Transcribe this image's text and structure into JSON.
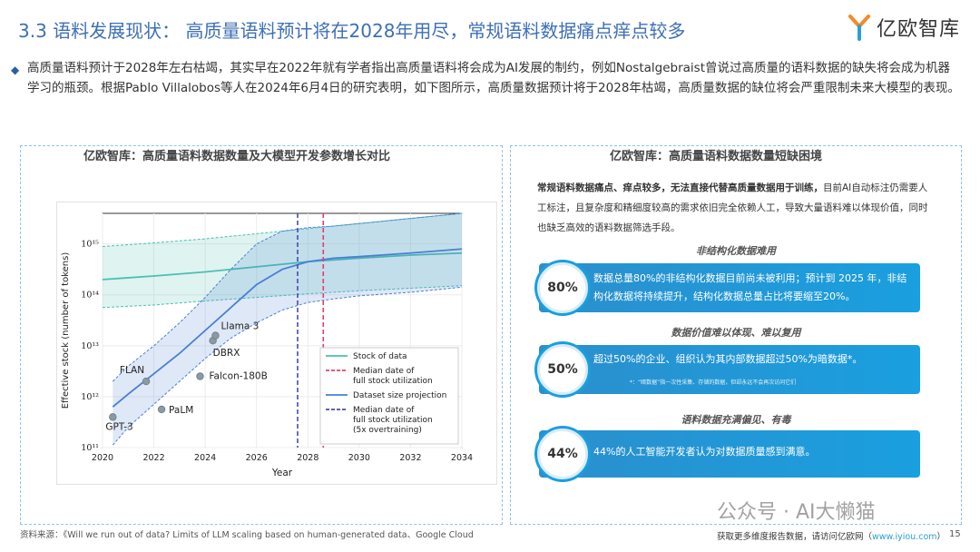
{
  "header": {
    "title": "3.3 语料发展现状： 高质量语料预计将在2028年用尽，常规语料数据痛点痒点较多",
    "logo_text": "亿欧智库"
  },
  "intro": {
    "text": "高质量语料预计于2028年左右枯竭，其实早在2022年就有学者指出高质量语料将会成为AI发展的制约，例如Nostalgebraist曾说过高质量的语料数据的缺失将会成为机器学习的瓶颈。根据Pablo Villalobos等人在2024年6月4日的研究表明，如下图所示，高质量数据预计将于2028年枯竭，高质量数据的缺位将会严重限制未来大模型的表现。"
  },
  "left_panel": {
    "title": "亿欧智库：高质量语料数据数量及大模型开发参数增长对比"
  },
  "right_panel": {
    "title": "亿欧智库：高质量语料数据数量短缺困境",
    "desc_bold": "常规语料数据痛点、痒点较多，无法直接代替高质量数据用于训练，",
    "desc_rest": "目前AI自动标注仍需要人工标注，且复杂度和精细度较高的需求依旧完全依赖人工，导致大量语料难以体现价值，同时也缺乏高效的语料数据筛选手段。",
    "sections": [
      {
        "label": "非结构化数据难用",
        "pct": "80%",
        "text": "数据总量80%的非结构化数据目前尚未被利用；预计到 2025 年，非结构化数据将持续提升，结构化数据总量占比将要缩至20%。",
        "note": ""
      },
      {
        "label": "数据价值难以体现、难以复用",
        "pct": "50%",
        "text": "超过50%的企业、组织认为其内部数据超过50%为暗数据*。",
        "note": "*：“暗数据”指一次性采集、存储的数据，但却永远不会再次访问它们"
      },
      {
        "label": "语料数据充满偏见、有毒",
        "pct": "44%",
        "text": "44%的人工智能开发者认为对数据质量感到满意。",
        "note": ""
      }
    ]
  },
  "footer": {
    "source": "资料来源：《Will we run out of data? Limits of LLM scaling based on human-generated data、Google Cloud",
    "more_prefix": "获取更多维度报告数据，请访问亿欧网（",
    "more_link": "www.iyiou.com",
    "more_suffix": "）",
    "page": "15",
    "watermark": "公众号 · AI大懒猫"
  },
  "chart_data": {
    "type": "line",
    "xlabel": "Year",
    "ylabel": "Effective stock (number of tokens)",
    "xlim": [
      2020,
      2034
    ],
    "ylim_log10": [
      11,
      15.6
    ],
    "x_ticks": [
      2020,
      2022,
      2024,
      2026,
      2028,
      2030,
      2032,
      2034
    ],
    "y_ticks": [
      {
        "exp": 11,
        "label": "10¹¹"
      },
      {
        "exp": 12,
        "label": "10¹²"
      },
      {
        "exp": 13,
        "label": "10¹³"
      },
      {
        "exp": 14,
        "label": "10¹⁴"
      },
      {
        "exp": 15,
        "label": "10¹⁵"
      }
    ],
    "grid": true,
    "legend_position": "lower-right",
    "series": [
      {
        "name": "Stock of data",
        "color": "#4bbfb1",
        "x": [
          2020,
          2022,
          2024,
          2026,
          2028,
          2030,
          2032,
          2034
        ],
        "log10_y": [
          14.3,
          14.37,
          14.45,
          14.55,
          14.65,
          14.72,
          14.78,
          14.82
        ],
        "band_upper": [
          14.95,
          15.02,
          15.1,
          15.2,
          15.3,
          15.4,
          15.5,
          15.6
        ],
        "band_lower": [
          13.75,
          13.8,
          13.88,
          13.95,
          14.02,
          14.08,
          14.13,
          14.18
        ]
      },
      {
        "name": "Dataset size projection",
        "color": "#4a7fd4",
        "x": [
          2020.4,
          2021,
          2022,
          2023,
          2024,
          2025,
          2026,
          2027,
          2028,
          2029,
          2030,
          2032,
          2034
        ],
        "log10_y": [
          11.8,
          12.05,
          12.45,
          12.85,
          13.3,
          13.75,
          14.2,
          14.5,
          14.65,
          14.72,
          14.75,
          14.82,
          14.9
        ],
        "band_upper": [
          12.3,
          12.6,
          13.0,
          13.45,
          13.95,
          14.5,
          15.0,
          15.25,
          15.32,
          15.35,
          15.4,
          15.5,
          15.6
        ],
        "band_lower": [
          11.05,
          11.4,
          11.85,
          12.3,
          12.75,
          13.15,
          13.45,
          13.7,
          13.85,
          13.92,
          13.98,
          14.05,
          14.15
        ]
      }
    ],
    "vlines": [
      {
        "name": "Median date of full stock utilization",
        "x": 2028.6,
        "color": "#e0416b",
        "style": "dashed"
      },
      {
        "name": "Median date of full stock utilization (5x overtraining)",
        "x": 2027.6,
        "color": "#4b49b8",
        "style": "dashed"
      }
    ],
    "points": [
      {
        "label": "GPT-3",
        "x": 2020.4,
        "log10_y": 11.6
      },
      {
        "label": "FLAN",
        "x": 2021.7,
        "log10_y": 12.3
      },
      {
        "label": "PaLM",
        "x": 2022.3,
        "log10_y": 11.75
      },
      {
        "label": "Falcon-180B",
        "x": 2023.8,
        "log10_y": 12.4
      },
      {
        "label": "DBRX",
        "x": 2024.3,
        "log10_y": 13.1
      },
      {
        "label": "Llama 3",
        "x": 2024.4,
        "log10_y": 13.2
      }
    ],
    "legend": [
      {
        "label": "Stock of data",
        "color": "#4bbfb1",
        "style": "solid"
      },
      {
        "label": "Median date of\nfull stock utilization",
        "color": "#e0416b",
        "style": "dashed"
      },
      {
        "label": "Dataset size projection",
        "color": "#4a7fd4",
        "style": "solid"
      },
      {
        "label": "Median date of\nfull stock utilization\n(5x overtraining)",
        "color": "#4b49b8",
        "style": "dashed"
      }
    ]
  },
  "colors": {
    "accent": "#3e6fb5",
    "card": "#1a9fdf",
    "dashed_border": "#8fc3e8"
  },
  "icons": {
    "logo": "yiou-logo-icon",
    "bullet": "diamond-bullet-icon"
  }
}
